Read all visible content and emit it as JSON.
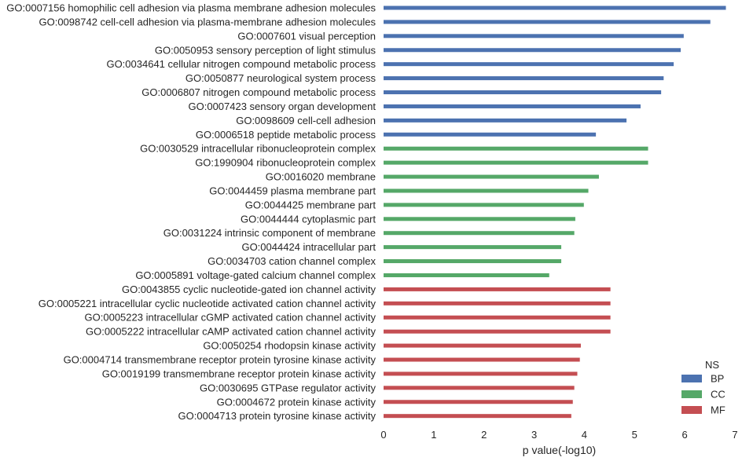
{
  "chart_data": {
    "type": "bar",
    "orientation": "horizontal",
    "categories": [
      "GO:0007156 homophilic cell adhesion via plasma membrane adhesion molecules",
      "GO:0098742 cell-cell adhesion via plasma-membrane adhesion molecules",
      "GO:0007601 visual perception",
      "GO:0050953 sensory perception of light stimulus",
      "GO:0034641 cellular nitrogen compound metabolic process",
      "GO:0050877 neurological system process",
      "GO:0006807 nitrogen compound metabolic process",
      "GO:0007423 sensory organ development",
      "GO:0098609 cell-cell adhesion",
      "GO:0006518 peptide metabolic process",
      "GO:0030529 intracellular ribonucleoprotein complex",
      "GO:1990904 ribonucleoprotein complex",
      "GO:0016020 membrane",
      "GO:0044459 plasma membrane part",
      "GO:0044425 membrane part",
      "GO:0044444 cytoplasmic part",
      "GO:0031224 intrinsic component of membrane",
      "GO:0044424 intracellular part",
      "GO:0034703 cation channel complex",
      "GO:0005891 voltage-gated calcium channel complex",
      "GO:0043855 cyclic nucleotide-gated ion channel activity",
      "GO:0005221 intracellular cyclic nucleotide activated cation channel activity",
      "GO:0005223 intracellular cGMP activated cation channel activity",
      "GO:0005222 intracellular cAMP activated cation channel activity",
      "GO:0050254 rhodopsin kinase activity",
      "GO:0004714 transmembrane receptor protein tyrosine kinase activity",
      "GO:0019199 transmembrane receptor protein kinase activity",
      "GO:0030695 GTPase regulator activity",
      "GO:0004672 protein kinase activity",
      "GO:0004713 protein tyrosine kinase activity"
    ],
    "values": [
      6.82,
      6.51,
      5.98,
      5.92,
      5.78,
      5.58,
      5.53,
      5.12,
      4.84,
      4.23,
      5.27,
      5.27,
      4.29,
      4.08,
      3.99,
      3.82,
      3.8,
      3.54,
      3.54,
      3.3,
      4.52,
      4.52,
      4.52,
      4.52,
      3.93,
      3.91,
      3.86,
      3.8,
      3.77,
      3.74
    ],
    "groups": [
      "BP",
      "BP",
      "BP",
      "BP",
      "BP",
      "BP",
      "BP",
      "BP",
      "BP",
      "BP",
      "CC",
      "CC",
      "CC",
      "CC",
      "CC",
      "CC",
      "CC",
      "CC",
      "CC",
      "CC",
      "MF",
      "MF",
      "MF",
      "MF",
      "MF",
      "MF",
      "MF",
      "MF",
      "MF",
      "MF"
    ],
    "xlabel": "p value(-log10)",
    "xlim": [
      0,
      7
    ],
    "xticks": [
      0,
      1,
      2,
      3,
      4,
      5,
      6,
      7
    ],
    "grid": false,
    "legend": {
      "title": "NS",
      "position": "bottom-right",
      "entries": [
        {
          "name": "BP",
          "color": "#4c72b0"
        },
        {
          "name": "CC",
          "color": "#55a868"
        },
        {
          "name": "MF",
          "color": "#c44e52"
        }
      ]
    }
  }
}
